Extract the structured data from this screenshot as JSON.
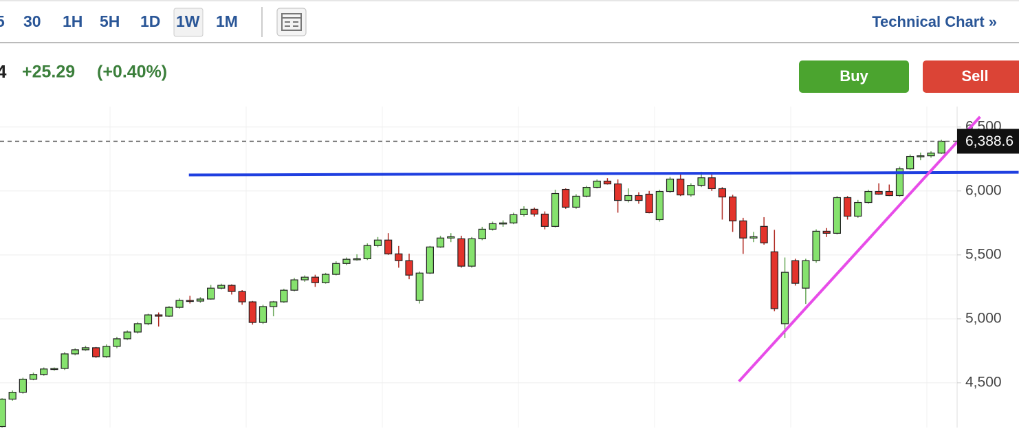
{
  "toolbar": {
    "intervals": [
      "5",
      "30",
      "1H",
      "5H",
      "1D",
      "1W",
      "1M"
    ],
    "technical_link": "Technical Chart »"
  },
  "quote": {
    "price_fragment": "4",
    "change": "+25.29",
    "change_percent": "(+0.40%)",
    "buy": "Buy",
    "sell": "Sell"
  },
  "chart_data": {
    "type": "candlestick",
    "open": [
      4158,
      4372,
      4426,
      4528,
      4565,
      4608,
      4612,
      4726,
      4758,
      4774,
      4704,
      4785,
      4844,
      4897,
      4962,
      5031,
      5021,
      5090,
      5144,
      5139,
      5155,
      5240,
      5262,
      5214,
      5133,
      4972,
      5096,
      5133,
      5224,
      5305,
      5326,
      5283,
      5348,
      5433,
      5466,
      5470,
      5573,
      5616,
      5508,
      5455,
      5144,
      5358,
      5562,
      5632,
      5626,
      5412,
      5626,
      5701,
      5744,
      5750,
      5814,
      5857,
      5819,
      5723,
      6012,
      5873,
      5959,
      6028,
      6077,
      6055,
      5926,
      5964,
      5975,
      5776,
      5996,
      6093,
      5969,
      6044,
      6103,
      6018,
      5953,
      5766,
      5632,
      5723,
      5524,
      4962,
      5455,
      5240,
      5455,
      5685,
      5669,
      5948,
      5803,
      5910,
      5996,
      5996,
      5964,
      6173,
      6270,
      6275,
      6296
    ],
    "high": [
      4380,
      4440,
      4540,
      4580,
      4620,
      4620,
      4740,
      4770,
      4790,
      4780,
      4800,
      4860,
      4910,
      4975,
      5040,
      5050,
      5100,
      5160,
      5180,
      5170,
      5265,
      5275,
      5270,
      5225,
      5140,
      5110,
      5140,
      5235,
      5320,
      5340,
      5345,
      5360,
      5450,
      5480,
      5505,
      5590,
      5640,
      5670,
      5570,
      5510,
      5370,
      5570,
      5650,
      5670,
      5650,
      5640,
      5720,
      5760,
      5770,
      5830,
      5880,
      5870,
      5840,
      6010,
      6020,
      5975,
      6040,
      6090,
      6100,
      6090,
      6020,
      5990,
      6000,
      6010,
      6110,
      6130,
      6060,
      6150,
      6140,
      6030,
      5970,
      5790,
      5680,
      5795,
      5696,
      5480,
      5470,
      5470,
      5700,
      5710,
      5960,
      5960,
      5930,
      6010,
      6060,
      6050,
      6190,
      6285,
      6300,
      6310,
      6400
    ],
    "low": [
      4150,
      4360,
      4415,
      4520,
      4555,
      4595,
      4600,
      4715,
      4750,
      4695,
      4695,
      4770,
      4835,
      4885,
      4950,
      4940,
      5015,
      5080,
      5120,
      5125,
      5150,
      5230,
      5190,
      5110,
      4955,
      4960,
      5020,
      5125,
      5215,
      5290,
      5250,
      5275,
      5340,
      5420,
      5455,
      5460,
      5560,
      5500,
      5400,
      5310,
      5120,
      5350,
      5555,
      5600,
      5400,
      5400,
      5615,
      5690,
      5720,
      5740,
      5800,
      5800,
      5700,
      5715,
      5860,
      5860,
      5950,
      6020,
      6050,
      5830,
      5910,
      5900,
      5825,
      5760,
      5985,
      5960,
      5955,
      6030,
      6000,
      5776,
      5680,
      5508,
      5600,
      5580,
      5060,
      4849,
      5260,
      5117,
      5439,
      5640,
      5660,
      5776,
      5790,
      5900,
      5970,
      5960,
      5955,
      6165,
      6240,
      6260,
      6290
    ],
    "close": [
      4372,
      4426,
      4528,
      4565,
      4608,
      4612,
      4726,
      4758,
      4774,
      4704,
      4785,
      4844,
      4897,
      4962,
      5031,
      5021,
      5090,
      5144,
      5139,
      5155,
      5240,
      5262,
      5214,
      5133,
      4972,
      5096,
      5133,
      5224,
      5305,
      5326,
      5283,
      5348,
      5433,
      5466,
      5470,
      5573,
      5616,
      5508,
      5455,
      5342,
      5358,
      5562,
      5632,
      5642,
      5412,
      5626,
      5701,
      5744,
      5750,
      5814,
      5857,
      5819,
      5723,
      5980,
      5873,
      5959,
      6028,
      6077,
      6055,
      5926,
      5964,
      5926,
      5830,
      5996,
      6093,
      5969,
      6044,
      6103,
      6018,
      5953,
      5766,
      5632,
      5642,
      5594,
      5080,
      5364,
      5278,
      5455,
      5685,
      5669,
      5948,
      5803,
      5910,
      5996,
      5975,
      5964,
      6173,
      6270,
      6275,
      6296,
      6388.6
    ],
    "up_color": "#86e26e",
    "down_color": "#e3332b",
    "ylim": [
      4150,
      6660
    ],
    "yticks": [
      {
        "value": 4500,
        "label": "4,500"
      },
      {
        "value": 5000,
        "label": "5,000"
      },
      {
        "value": 5500,
        "label": "5,500"
      },
      {
        "value": 6000,
        "label": "6,000"
      },
      {
        "value": 6500,
        "label": "6,500"
      }
    ],
    "grid": true,
    "last_price": {
      "value": 6388.6,
      "label": "6,388.6"
    },
    "lines": [
      {
        "color": "#1f3fe0",
        "x": [
          17.9,
          97.4
        ],
        "values": [
          6125,
          6146
        ]
      },
      {
        "color": "#e74ce8",
        "x": [
          70.6,
          93.7
        ],
        "values": [
          4511,
          6580
        ]
      }
    ]
  }
}
